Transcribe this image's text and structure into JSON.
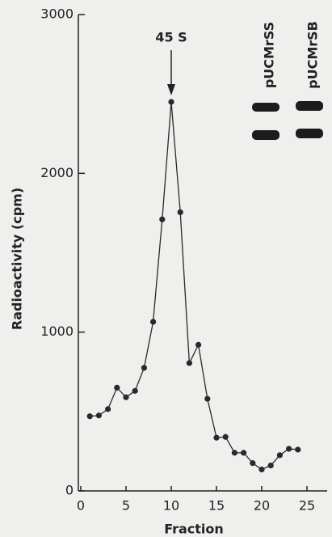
{
  "chart_data": {
    "type": "line",
    "x": [
      1,
      2,
      3,
      4,
      5,
      6,
      7,
      8,
      9,
      10,
      11,
      12,
      13,
      14,
      15,
      16,
      17,
      18,
      19,
      20,
      21,
      22,
      23,
      24
    ],
    "series": [
      {
        "color": "#2a2a2a",
        "values": [
          470,
          475,
          515,
          650,
          590,
          630,
          775,
          1065,
          1710,
          2450,
          1755,
          805,
          920,
          580,
          335,
          340,
          240,
          240,
          175,
          135,
          160,
          225,
          265,
          260
        ]
      }
    ],
    "xlabel": "Fraction",
    "ylabel": "Radioactivity (cpm)",
    "xlim": [
      0,
      27.5
    ],
    "ylim": [
      0,
      3000
    ],
    "xticks": [
      0,
      5,
      10,
      15,
      20,
      25
    ],
    "yticks": [
      0,
      1000,
      2000,
      3000
    ],
    "annotation": "45 S",
    "inset_labels": [
      "pUCMrSS",
      "pUCMrSB"
    ]
  }
}
